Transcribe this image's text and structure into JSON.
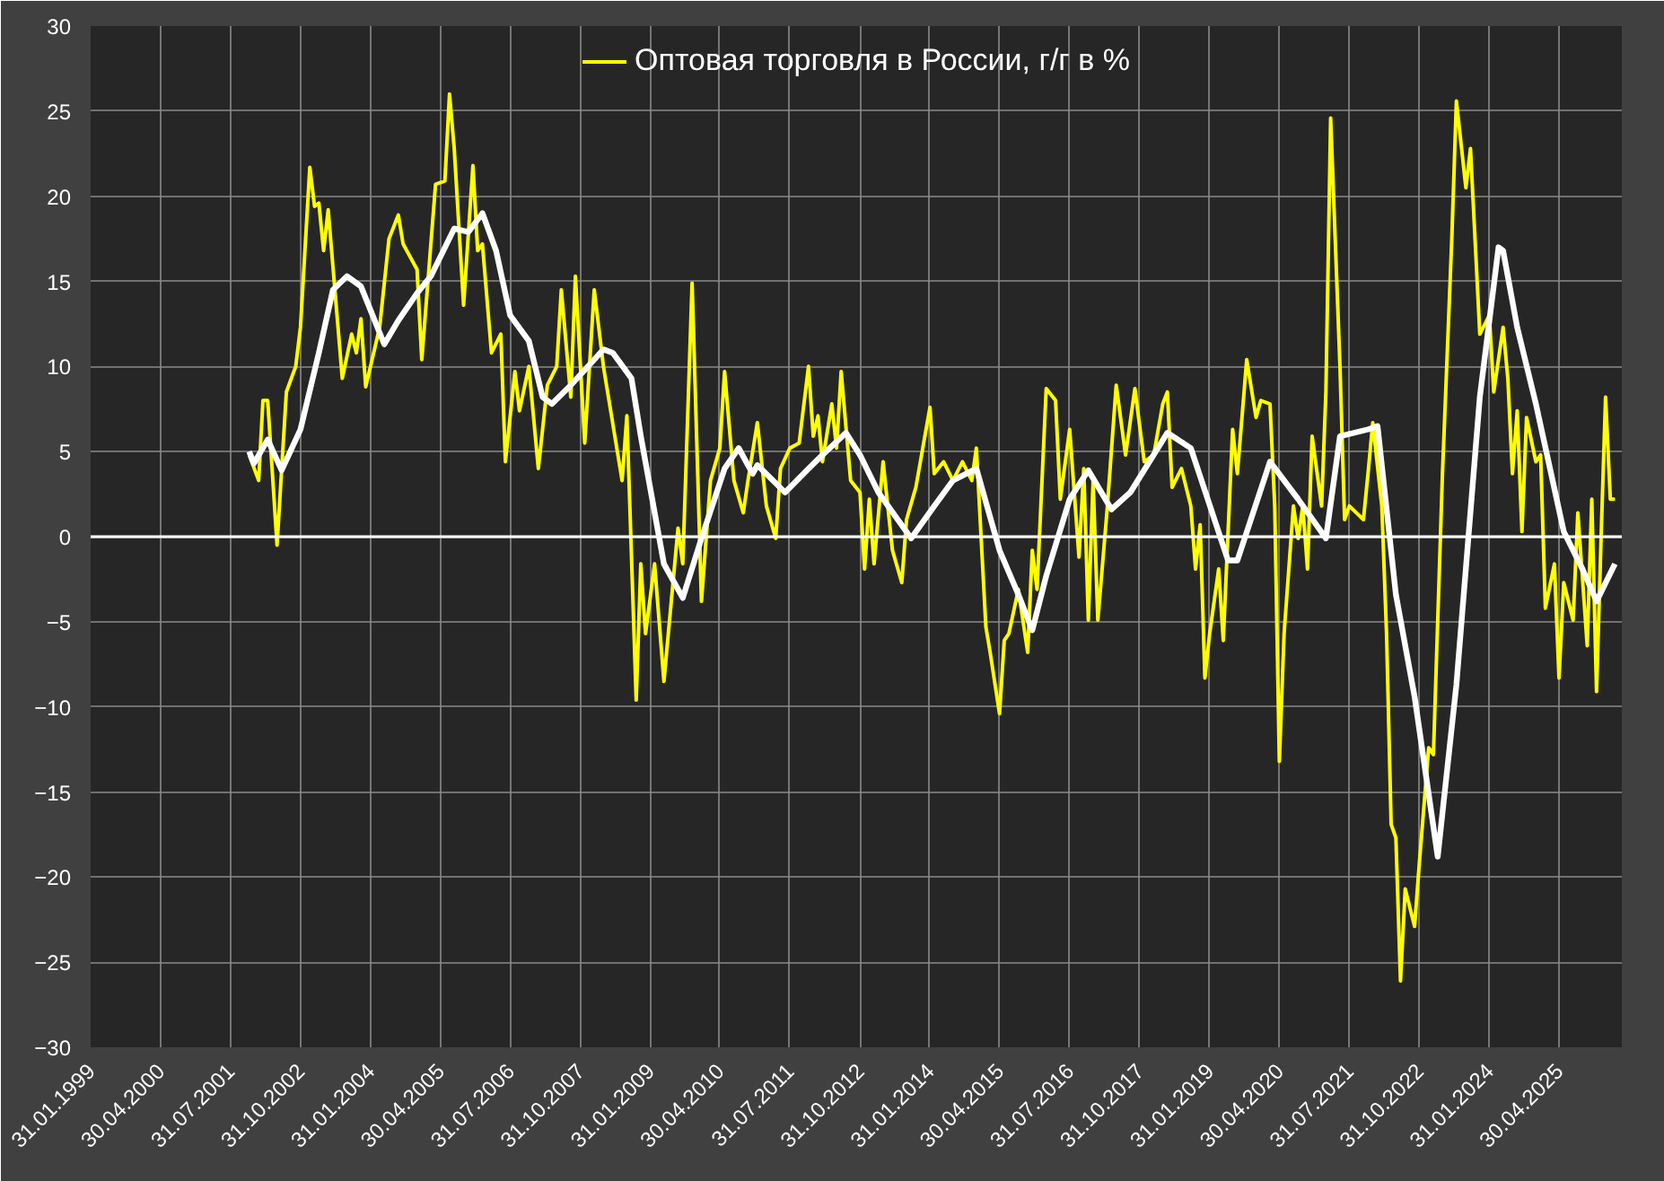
{
  "chart_data": {
    "type": "line",
    "xlim": [
      "1999-01-31",
      "2026-06-15"
    ],
    "xticks": [
      {
        "value": "1999-01-31",
        "label": "31.01.1999"
      },
      {
        "value": "2000-04-30",
        "label": "30.04.2000"
      },
      {
        "value": "2001-07-31",
        "label": "31.07.2001"
      },
      {
        "value": "2002-10-31",
        "label": "31.10.2002"
      },
      {
        "value": "2004-01-31",
        "label": "31.01.2004"
      },
      {
        "value": "2005-04-30",
        "label": "30.04.2005"
      },
      {
        "value": "2006-07-31",
        "label": "31.07.2006"
      },
      {
        "value": "2007-10-31",
        "label": "31.10.2007"
      },
      {
        "value": "2009-01-31",
        "label": "31.01.2009"
      },
      {
        "value": "2010-04-30",
        "label": "30.04.2010"
      },
      {
        "value": "2011-07-31",
        "label": "31.07.2011"
      },
      {
        "value": "2012-10-31",
        "label": "31.10.2012"
      },
      {
        "value": "2014-01-31",
        "label": "31.01.2014"
      },
      {
        "value": "2015-04-30",
        "label": "30.04.2015"
      },
      {
        "value": "2016-07-31",
        "label": "31.07.2016"
      },
      {
        "value": "2017-10-31",
        "label": "31.10.2017"
      },
      {
        "value": "2019-01-31",
        "label": "31.01.2019"
      },
      {
        "value": "2020-04-30",
        "label": "30.04.2020"
      },
      {
        "value": "2021-07-31",
        "label": "31.07.2021"
      },
      {
        "value": "2022-10-31",
        "label": "31.10.2022"
      },
      {
        "value": "2024-01-31",
        "label": "31.01.2024"
      },
      {
        "value": "2025-04-30",
        "label": "30.04.2025"
      }
    ],
    "ylim": [
      -30,
      30
    ],
    "yticks": [
      -30,
      -25,
      -20,
      -15,
      -10,
      -5,
      0,
      5,
      10,
      15,
      20,
      25,
      30
    ],
    "grid": true,
    "legend": "top",
    "ref_lines": [
      {
        "axis": "y",
        "value": 0,
        "color": "#ffffff"
      }
    ],
    "series": [
      {
        "name": "Оптовая торговля в России, г/г в %",
        "color": "#ffff00",
        "x": [
          "2001-12",
          "2002-02",
          "2002-03",
          "2002-04",
          "2002-06",
          "2002-08",
          "2002-10",
          "2002-11",
          "2003-01",
          "2003-02",
          "2003-03",
          "2003-04",
          "2003-05",
          "2003-08",
          "2003-10",
          "2003-11",
          "2003-12",
          "2004-01",
          "2004-04",
          "2004-06",
          "2004-08",
          "2004-09",
          "2004-12",
          "2005-01",
          "2005-04",
          "2005-06",
          "2005-07",
          "2005-08",
          "2005-10",
          "2005-12",
          "2006-01",
          "2006-02",
          "2006-04",
          "2006-06",
          "2006-07",
          "2006-09",
          "2006-10",
          "2006-12",
          "2007-02",
          "2007-04",
          "2007-06",
          "2007-07",
          "2007-09",
          "2007-10",
          "2007-12",
          "2008-02",
          "2008-04",
          "2008-08",
          "2008-09",
          "2008-11",
          "2008-12",
          "2009-01",
          "2009-03",
          "2009-05",
          "2009-08",
          "2009-09",
          "2009-11",
          "2010-01",
          "2010-03",
          "2010-05",
          "2010-06",
          "2010-08",
          "2010-10",
          "2010-11",
          "2011-01",
          "2011-03",
          "2011-05",
          "2011-06",
          "2011-08",
          "2011-10",
          "2011-12",
          "2012-01",
          "2012-02",
          "2012-03",
          "2012-05",
          "2012-06",
          "2012-07",
          "2012-09",
          "2012-11",
          "2012-12",
          "2013-01",
          "2013-02",
          "2013-04",
          "2013-06",
          "2013-08",
          "2013-09",
          "2013-11",
          "2014-02",
          "2014-03",
          "2014-05",
          "2014-07",
          "2014-09",
          "2014-11",
          "2014-12",
          "2015-02",
          "2015-03",
          "2015-05",
          "2015-06",
          "2015-07",
          "2015-09",
          "2015-11",
          "2015-12",
          "2016-01",
          "2016-03",
          "2016-05",
          "2016-06",
          "2016-08",
          "2016-10",
          "2016-11",
          "2016-12",
          "2017-01",
          "2017-02",
          "2017-04",
          "2017-06",
          "2017-08",
          "2017-10",
          "2017-12",
          "2018-02",
          "2018-04",
          "2018-05",
          "2018-06",
          "2018-08",
          "2018-10",
          "2018-11",
          "2018-12",
          "2019-01",
          "2019-02",
          "2019-04",
          "2019-05",
          "2019-07",
          "2019-08",
          "2019-10",
          "2019-12",
          "2020-01",
          "2020-03",
          "2020-04",
          "2020-05",
          "2020-06",
          "2020-08",
          "2020-09",
          "2020-10",
          "2020-11",
          "2020-12",
          "2021-02",
          "2021-03",
          "2021-04",
          "2021-06",
          "2021-07",
          "2021-08",
          "2021-11",
          "2021-12",
          "2022-01",
          "2022-03",
          "2022-04",
          "2022-05",
          "2022-06",
          "2022-07",
          "2022-08",
          "2022-10",
          "2022-11",
          "2023-01",
          "2023-02",
          "2023-04",
          "2023-06",
          "2023-07",
          "2023-09",
          "2023-10",
          "2023-12",
          "2024-02",
          "2024-03",
          "2024-05",
          "2024-06",
          "2024-07",
          "2024-08",
          "2024-09",
          "2024-10",
          "2024-12",
          "2025-01",
          "2025-02",
          "2025-04",
          "2025-05",
          "2025-06",
          "2025-08",
          "2025-09",
          "2025-11",
          "2025-12",
          "2026-01",
          "2026-02",
          "2026-03",
          "2026-04",
          "2026-05"
        ],
        "values": [
          4.8,
          3.3,
          8.0,
          8.0,
          -0.5,
          8.5,
          10,
          12.3,
          21.7,
          19.4,
          19.6,
          16.8,
          19.2,
          9.3,
          11.9,
          10.8,
          12.8,
          8.8,
          12.3,
          17.5,
          18.9,
          17.2,
          15.7,
          10.4,
          20.7,
          20.9,
          26.0,
          22.8,
          13.6,
          21.8,
          16.8,
          17.2,
          10.8,
          11.9,
          4.4,
          9.7,
          7.4,
          10.0,
          4.0,
          8.9,
          10,
          14.5,
          8.2,
          15.3,
          5.5,
          14.5,
          10,
          3.3,
          7.1,
          -9.6,
          -1.6,
          -5.7,
          -1.6,
          -8.5,
          0.5,
          -1.6,
          14.9,
          -3.8,
          3.3,
          5.2,
          9.7,
          3.3,
          1.4,
          3.3,
          6.7,
          1.8,
          -0.1,
          4.0,
          5.2,
          5.5,
          10,
          5.9,
          7.1,
          4.4,
          7.8,
          5.2,
          9.7,
          3.3,
          2.6,
          -1.9,
          2.2,
          -1.6,
          4.4,
          -0.8,
          -2.7,
          1.0,
          2.9,
          7.6,
          3.7,
          4.4,
          3.3,
          4.4,
          3.3,
          5.2,
          -5.3,
          -6.8,
          -10.4,
          -6.1,
          -5.7,
          -3.1,
          -6.8,
          -0.8,
          -3.1,
          8.7,
          8.0,
          2.2,
          6.3,
          -1.2,
          4.0,
          -4.9,
          3.3,
          -4.9,
          1.4,
          8.9,
          4.8,
          8.7,
          4.4,
          4.8,
          7.8,
          8.5,
          2.9,
          4.0,
          1.8,
          -1.9,
          0.7,
          -8.3,
          -5.7,
          -1.9,
          -6.1,
          6.3,
          3.7,
          10.4,
          7.0,
          8.0,
          7.8,
          1.8,
          -13.2,
          -5.7,
          1.8,
          -0.1,
          1.8,
          -1.9,
          5.9,
          1.8,
          8.5,
          24.6,
          10,
          1.0,
          1.8,
          1.0,
          3.7,
          6.7,
          1.8,
          -5.7,
          -16.9,
          -17.7,
          -26.1,
          -20.7,
          -22.9,
          -19.2,
          -12.4,
          -12.8,
          3.7,
          17.5,
          25.6,
          20.5,
          22.8,
          11.9,
          13,
          8.5,
          12.3,
          9.3,
          3.7,
          7.4,
          0.3,
          7.0,
          4.4,
          4.8,
          -4.2,
          -1.6,
          -8.3,
          -2.7,
          -4.9,
          1.4,
          -6.4,
          2.2,
          -9.1,
          0.3,
          8.2,
          2.2,
          2.2
        ]
      },
      {
        "color": "#ffffff",
        "x": [
          "2001-12",
          "2002-01",
          "2002-04",
          "2002-07",
          "2002-11",
          "2003-03",
          "2003-06",
          "2003-09",
          "2003-12",
          "2004-05",
          "2004-08",
          "2004-12",
          "2005-03",
          "2005-08",
          "2005-11",
          "2006-02",
          "2006-05",
          "2006-08",
          "2006-12",
          "2007-03",
          "2007-05",
          "2007-09",
          "2007-11",
          "2008-04",
          "2008-06",
          "2008-10",
          "2008-12",
          "2009-05",
          "2009-09",
          "2010-01",
          "2010-06",
          "2010-09",
          "2010-12",
          "2011-01",
          "2011-07",
          "2011-12",
          "2012-03",
          "2012-08",
          "2012-11",
          "2013-03",
          "2013-10",
          "2014-03",
          "2014-07",
          "2014-12",
          "2015-05",
          "2015-09",
          "2015-12",
          "2016-03",
          "2016-08",
          "2016-12",
          "2017-05",
          "2017-09",
          "2018-05",
          "2018-10",
          "2019-06",
          "2019-08",
          "2020-03",
          "2020-09",
          "2021-03",
          "2021-06",
          "2021-12",
          "2022-02",
          "2022-06",
          "2022-10",
          "2023-03",
          "2023-07",
          "2023-12",
          "2024-04",
          "2024-05",
          "2024-08",
          "2024-12",
          "2025-06",
          "2025-10",
          "2026-01",
          "2026-05"
        ],
        "values": [
          5.0,
          4.3,
          5.7,
          3.9,
          6.3,
          10.8,
          14.5,
          15.3,
          14.7,
          11.3,
          12.7,
          14.3,
          15.3,
          18.1,
          17.9,
          19.0,
          16.8,
          13.0,
          11.5,
          8.2,
          7.8,
          8.9,
          9.5,
          11.0,
          10.8,
          9.3,
          5.9,
          -1.6,
          -3.6,
          -0.1,
          4.0,
          5.2,
          3.7,
          4.2,
          2.6,
          4.0,
          4.8,
          6.1,
          4.8,
          2.6,
          -0.1,
          1.8,
          3.3,
          4.0,
          -0.8,
          -3.4,
          -5.5,
          -2.3,
          2.2,
          3.9,
          1.6,
          2.6,
          6.1,
          5.2,
          -1.4,
          -1.4,
          4.4,
          2.2,
          -0.1,
          5.9,
          6.3,
          6.5,
          -3.4,
          -9.4,
          -18.8,
          -8.7,
          8.2,
          17.0,
          16.8,
          12.3,
          7.8,
          0.3,
          -1.9,
          -3.8,
          -1.6
        ]
      }
    ]
  }
}
